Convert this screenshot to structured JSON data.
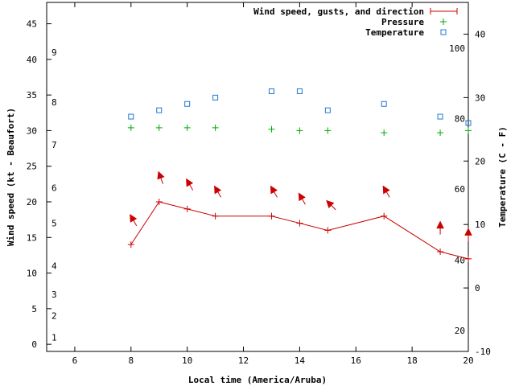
{
  "chart_data": {
    "type": "line",
    "xlabel": "Local time (America/Aruba)",
    "ylabel_left": "Wind speed (kt - Beaufort)",
    "ylabel_right": "Temperature (C - F)",
    "xlim": [
      5,
      20
    ],
    "ylim_left": [
      -1,
      48
    ],
    "ylim_right_celsius": [
      -10,
      45
    ],
    "x_ticks": [
      6,
      8,
      10,
      12,
      14,
      16,
      18,
      20
    ],
    "y_ticks_left": [
      0,
      5,
      10,
      15,
      20,
      25,
      30,
      35,
      40,
      45
    ],
    "y_ticks_right_celsius": [
      -10,
      0,
      10,
      20,
      30,
      40
    ],
    "fahrenheit_labels": [
      {
        "label": "20",
        "celsius": -6.7
      },
      {
        "label": "40",
        "celsius": 4.4
      },
      {
        "label": "60",
        "celsius": 15.6
      },
      {
        "label": "80",
        "celsius": 26.7
      },
      {
        "label": "100",
        "celsius": 37.8
      }
    ],
    "beaufort_labels": [
      {
        "label": "1",
        "kt": 1
      },
      {
        "label": "2",
        "kt": 4
      },
      {
        "label": "3",
        "kt": 7
      },
      {
        "label": "4",
        "kt": 11
      },
      {
        "label": "5",
        "kt": 17
      },
      {
        "label": "6",
        "kt": 22
      },
      {
        "label": "7",
        "kt": 28
      },
      {
        "label": "8",
        "kt": 34
      },
      {
        "label": "9",
        "kt": 41
      }
    ],
    "legend": {
      "position": "top-right",
      "entries": [
        {
          "name": "Wind speed, gusts, and direction",
          "color": "#cc0000",
          "marker": "line-plus"
        },
        {
          "name": "Pressure",
          "color": "#00aa00",
          "marker": "plus"
        },
        {
          "name": "Temperature",
          "color": "#1f77d4",
          "marker": "square"
        }
      ]
    },
    "series": [
      {
        "name": "Wind speed",
        "axis": "left",
        "color": "#cc0000",
        "x": [
          8,
          9,
          10,
          11,
          13,
          14,
          15,
          17,
          19,
          20
        ],
        "y": [
          14,
          20,
          19,
          18,
          18,
          17,
          16,
          18,
          13,
          12
        ]
      },
      {
        "name": "Pressure",
        "axis": "left",
        "color": "#00aa00",
        "x": [
          8,
          9,
          10,
          11,
          13,
          14,
          15,
          17,
          19,
          20
        ],
        "y": [
          30.4,
          30.4,
          30.4,
          30.4,
          30.2,
          30.0,
          30.0,
          29.7,
          29.7,
          30.0
        ]
      },
      {
        "name": "Temperature",
        "axis": "right",
        "unit": "C",
        "color": "#1f77d4",
        "x": [
          8,
          9,
          10,
          11,
          13,
          14,
          15,
          17,
          19,
          20
        ],
        "y": [
          27,
          28,
          29,
          30,
          31,
          31,
          28,
          29,
          27,
          26
        ]
      },
      {
        "name": "Wind direction",
        "axis": "left",
        "color": "#cc0000",
        "marker": "arrow",
        "x": [
          8,
          9,
          10,
          11,
          13,
          14,
          15,
          17,
          19,
          20
        ],
        "y": [
          18,
          24,
          23,
          22,
          22,
          21,
          20,
          22,
          17,
          16
        ],
        "direction_deg": [
          60,
          70,
          60,
          60,
          60,
          60,
          45,
          60,
          90,
          90
        ]
      }
    ]
  }
}
